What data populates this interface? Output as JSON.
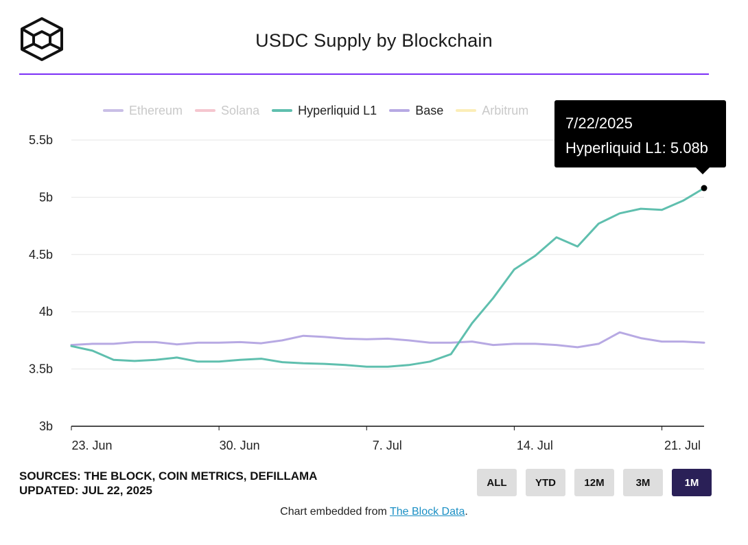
{
  "colors": {
    "ethereum": "#c9bfe6",
    "solana": "#f5c6cf",
    "hyperliquid": "#5fbfae",
    "base": "#b7a9e3",
    "arbitrum": "#fbeeb8",
    "accent": "#7b2ff7",
    "active_button": "#2a2057"
  },
  "tooltip": {
    "date": "7/22/2025",
    "text": "Hyperliquid L1: 5.08b"
  },
  "footer": {
    "sources": "SOURCES: THE BLOCK, COIN METRICS, DEFILLAMA",
    "updated": "UPDATED: JUL 22, 2025",
    "embed_prefix": "Chart embedded from ",
    "embed_link": "The Block Data",
    "embed_suffix": "."
  },
  "range_buttons": [
    {
      "label": "ALL",
      "active": false
    },
    {
      "label": "YTD",
      "active": false
    },
    {
      "label": "12M",
      "active": false
    },
    {
      "label": "3M",
      "active": false
    },
    {
      "label": "1M",
      "active": true
    }
  ],
  "chart_data": {
    "type": "line",
    "title": "USDC Supply by Blockchain",
    "xlabel": "",
    "ylabel": "",
    "ylim": [
      3,
      5.5
    ],
    "yticks": [
      3,
      3.5,
      4,
      4.5,
      5,
      5.5
    ],
    "ytick_labels": [
      "3b",
      "3.5b",
      "4b",
      "4.5b",
      "5b",
      "5.5b"
    ],
    "x_start": "2025-06-23",
    "x_end": "2025-07-22",
    "xticks": [
      {
        "day": 0,
        "label": "23. Jun"
      },
      {
        "day": 7,
        "label": "30. Jun"
      },
      {
        "day": 14,
        "label": "7. Jul"
      },
      {
        "day": 21,
        "label": "14. Jul"
      },
      {
        "day": 28,
        "label": "21. Jul"
      }
    ],
    "legend": [
      {
        "name": "Ethereum",
        "color_key": "ethereum",
        "visible": false
      },
      {
        "name": "Solana",
        "color_key": "solana",
        "visible": false
      },
      {
        "name": "Hyperliquid L1",
        "color_key": "hyperliquid",
        "visible": true
      },
      {
        "name": "Base",
        "color_key": "base",
        "visible": true
      },
      {
        "name": "Arbitrum",
        "color_key": "arbitrum",
        "visible": false
      }
    ],
    "series": [
      {
        "name": "Hyperliquid L1",
        "color_key": "hyperliquid",
        "values": [
          3.7,
          3.66,
          3.58,
          3.57,
          3.58,
          3.6,
          3.565,
          3.565,
          3.58,
          3.59,
          3.56,
          3.55,
          3.545,
          3.535,
          3.52,
          3.52,
          3.535,
          3.565,
          3.63,
          3.9,
          4.12,
          4.37,
          4.49,
          4.65,
          4.57,
          4.77,
          4.86,
          4.9,
          4.89,
          4.97,
          5.08
        ]
      },
      {
        "name": "Base",
        "color_key": "base",
        "values": [
          3.71,
          3.72,
          3.72,
          3.735,
          3.735,
          3.715,
          3.73,
          3.73,
          3.735,
          3.725,
          3.75,
          3.79,
          3.78,
          3.765,
          3.76,
          3.765,
          3.75,
          3.73,
          3.73,
          3.74,
          3.71,
          3.72,
          3.72,
          3.71,
          3.69,
          3.72,
          3.82,
          3.77,
          3.74,
          3.74,
          3.73
        ]
      }
    ],
    "highlight": {
      "series": "Hyperliquid L1",
      "index": 30,
      "value": 5.08,
      "date": "7/22/2025"
    }
  }
}
